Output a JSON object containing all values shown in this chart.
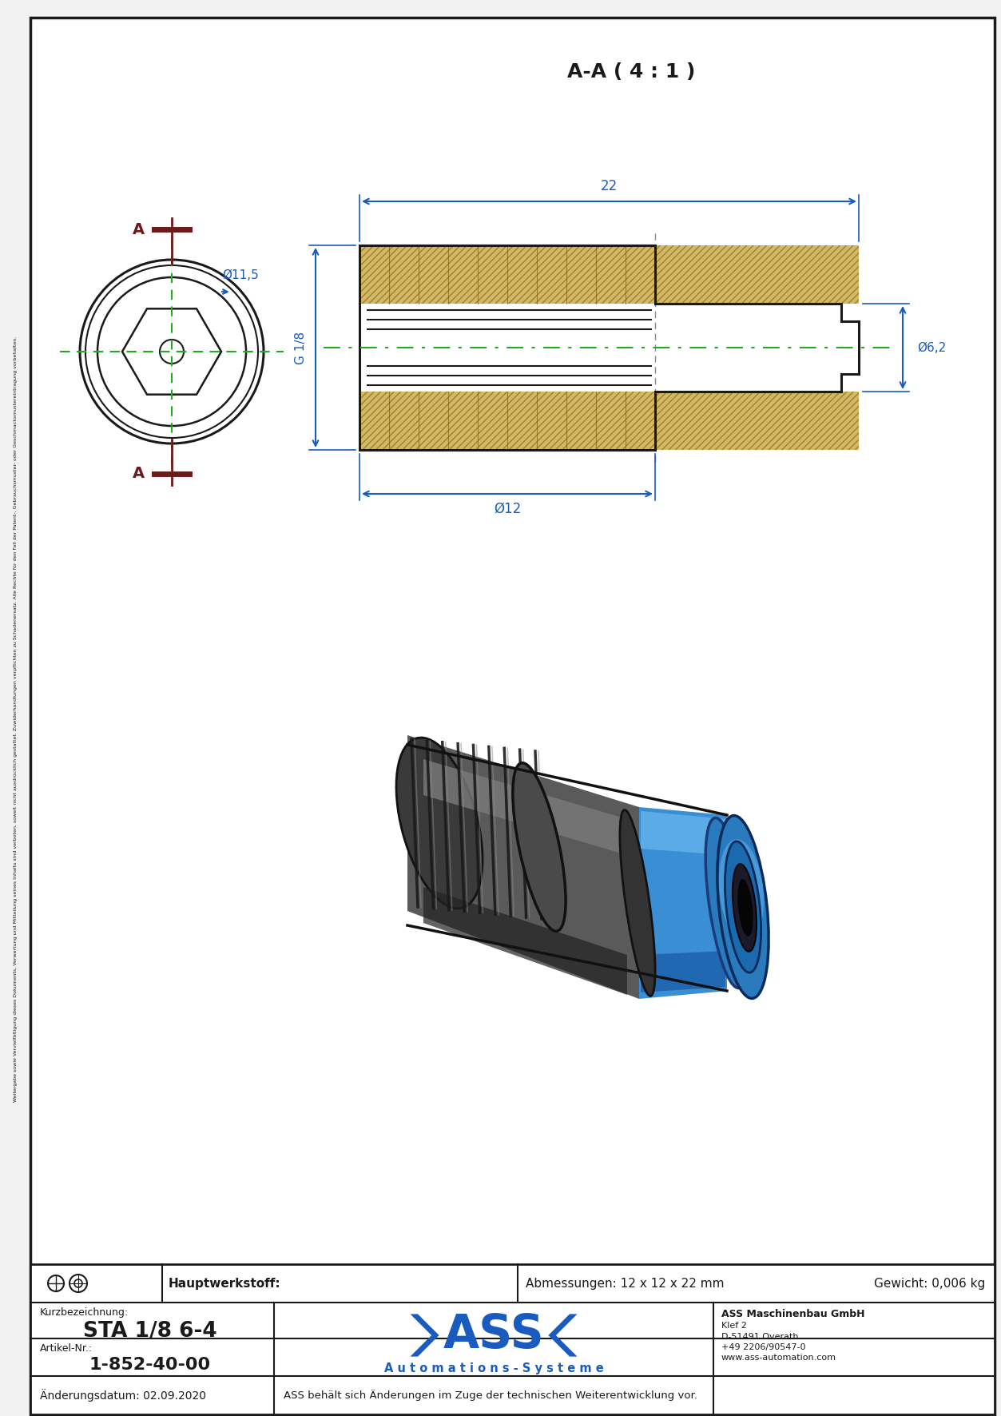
{
  "title": "STA 1/8 6-4",
  "article_nr": "1-852-40-00",
  "hauptwerkstoff": "Hauptwerkstoff:",
  "abmessungen": "Abmessungen: 12 x 12 x 22 mm",
  "gewicht": "Gewicht: 0,006 kg",
  "kurzbezeichnung": "Kurzbezeichnung:",
  "artikel_nr_label": "Artikel-Nr.:",
  "aenderungsdatum": "Änderungsdatum: 02.09.2020",
  "disclaimer": "ASS behält sich Änderungen im Zuge der technischen Weiterentwicklung vor.",
  "company_name": "ASS Maschinenbau GmbH",
  "company_address": "Klef 2\nD-51491 Overath\n+49 2206/90547-0\nwww.ass-automation.com",
  "automations_systeme": "A u t o m a t i o n s - S y s t e m e",
  "section_label": "A-A ( 4 : 1 )",
  "dim_22": "22",
  "dim_phi11_5": "Ø11,5",
  "dim_g1_8": "G 1/8",
  "dim_phi6_2": "Ø6,2",
  "dim_phi12": "Ø12",
  "section_a": "A",
  "bg_color": "#f2f2f2",
  "border_color": "#1a1a1a",
  "dim_color": "#1a5bbf",
  "green_dash": "#22aa22",
  "text_color": "#1a1a1a",
  "dark_red": "#6b1a1a",
  "hatch_color": "#d4b86a",
  "blue_logo": "#1a5bbf",
  "table_line_color": "#1a1a1a",
  "thread_color": "#4a4a4a",
  "connector_gray": "#555555",
  "connector_dark": "#2a2a2a",
  "connector_light": "#888888",
  "connector_blue": "#3a8fd4",
  "connector_blue_dark": "#1a5faa",
  "connector_blue_light": "#5ab0e8"
}
